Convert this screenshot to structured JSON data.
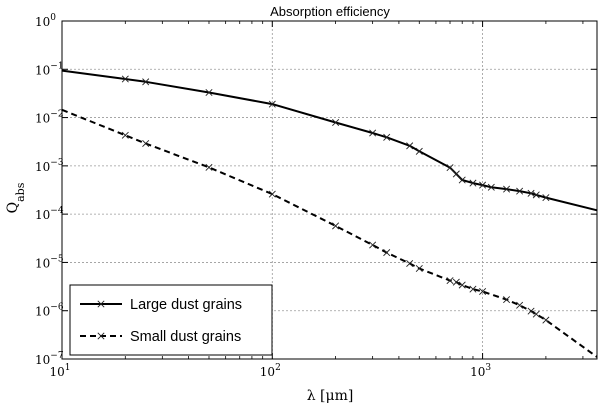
{
  "chart_data": {
    "type": "line",
    "title": "Absorption efficiency",
    "xlabel": "λ [μm]",
    "ylabel": "Q",
    "ylabel_sub": "abs",
    "xscale": "log",
    "yscale": "log",
    "xlim": [
      10,
      3500
    ],
    "ylim": [
      1e-07,
      1
    ],
    "grid": true,
    "legend_position": "lower-left",
    "x_ticks": [
      {
        "value": 10,
        "base": "10",
        "exp": "1"
      },
      {
        "value": 100,
        "base": "10",
        "exp": "2"
      },
      {
        "value": 1000,
        "base": "10",
        "exp": "3"
      }
    ],
    "y_ticks": [
      {
        "value": 1,
        "base": "10",
        "exp": "0"
      },
      {
        "value": 0.1,
        "base": "10",
        "exp": "−1"
      },
      {
        "value": 0.01,
        "base": "10",
        "exp": "−2"
      },
      {
        "value": 0.001,
        "base": "10",
        "exp": "−3"
      },
      {
        "value": 0.0001,
        "base": "10",
        "exp": "−4"
      },
      {
        "value": 1e-05,
        "base": "10",
        "exp": "−5"
      },
      {
        "value": 1e-06,
        "base": "10",
        "exp": "−6"
      },
      {
        "value": 1e-07,
        "base": "10",
        "exp": "−7"
      }
    ],
    "series": [
      {
        "name": "Large dust grains",
        "style": "solid",
        "x": [
          10,
          20,
          25,
          50,
          100,
          200,
          300,
          350,
          450,
          500,
          700,
          750,
          800,
          900,
          1000,
          1100,
          1300,
          1500,
          1700,
          1800,
          2000,
          3500
        ],
        "y": [
          0.094,
          0.063,
          0.055,
          0.033,
          0.019,
          0.0079,
          0.0048,
          0.0039,
          0.0026,
          0.002,
          0.00092,
          0.00068,
          0.00051,
          0.00044,
          0.0004,
          0.00036,
          0.00033,
          0.0003,
          0.00027,
          0.00025,
          0.00022,
          0.00012
        ],
        "markers": [
          20,
          25,
          50,
          100,
          200,
          300,
          350,
          450,
          500,
          700,
          750,
          800,
          900,
          1000,
          1100,
          1300,
          1500,
          1700,
          1800,
          2000
        ]
      },
      {
        "name": "Small dust grains",
        "style": "dashed",
        "x": [
          10,
          20,
          25,
          50,
          100,
          200,
          300,
          350,
          450,
          500,
          700,
          750,
          800,
          900,
          1000,
          1300,
          1500,
          1700,
          1800,
          2000,
          3500
        ],
        "y": [
          0.0145,
          0.0043,
          0.0029,
          0.00093,
          0.00026,
          5.7e-05,
          2.3e-05,
          1.6e-05,
          9.5e-06,
          7.5e-06,
          4.2e-06,
          3.9e-06,
          3.4e-06,
          2.8e-06,
          2.5e-06,
          1.7e-06,
          1.3e-06,
          9.8e-07,
          8.5e-07,
          6.4e-07,
          1.1e-07
        ],
        "markers": [
          20,
          25,
          50,
          100,
          200,
          300,
          350,
          450,
          500,
          700,
          750,
          800,
          900,
          1000,
          1300,
          1500,
          1700,
          1800,
          2000
        ]
      }
    ]
  }
}
